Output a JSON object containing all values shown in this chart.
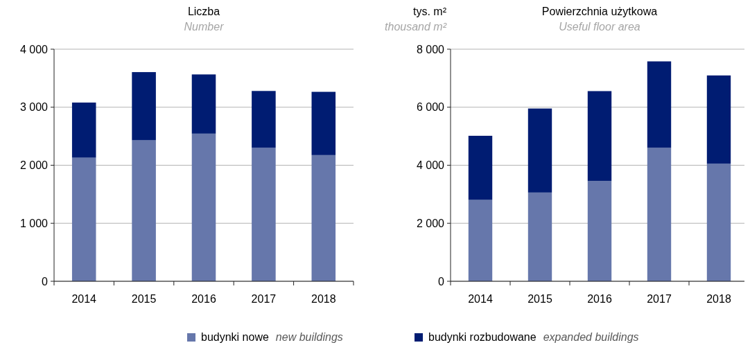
{
  "chart_data": [
    {
      "type": "bar",
      "title": "Liczba",
      "subtitle": "Number",
      "categories": [
        "2014",
        "2015",
        "2016",
        "2017",
        "2018"
      ],
      "stacked": true,
      "ylim": [
        0,
        4000
      ],
      "yticks": [
        {
          "value": 0,
          "label": "0"
        },
        {
          "value": 1000,
          "label": "1 000"
        },
        {
          "value": 2000,
          "label": "2 000"
        },
        {
          "value": 3000,
          "label": "3 000"
        },
        {
          "value": 4000,
          "label": "4 000"
        }
      ],
      "grid": "y",
      "legend": "bottom",
      "series": [
        {
          "name": "budynki nowe  new buildings",
          "color": "#6677ab",
          "values": [
            2130,
            2430,
            2545,
            2300,
            2175
          ]
        },
        {
          "name": "budynki rozbudowane  expanded buildings",
          "color": "#001c72",
          "values": [
            950,
            1175,
            1020,
            980,
            1090
          ]
        }
      ]
    },
    {
      "type": "bar",
      "title": "Powierzchnia użytkowa",
      "subtitle": "Useful floor area",
      "ylabel": "tys. m²",
      "annotations": [
        "thousand m²"
      ],
      "categories": [
        "2014",
        "2015",
        "2016",
        "2017",
        "2018"
      ],
      "stacked": true,
      "ylim": [
        0,
        8000
      ],
      "yticks": [
        {
          "value": 0,
          "label": "0"
        },
        {
          "value": 2000,
          "label": "2 000"
        },
        {
          "value": 4000,
          "label": "4 000"
        },
        {
          "value": 6000,
          "label": "6 000"
        },
        {
          "value": 8000,
          "label": "8 000"
        }
      ],
      "grid": "y",
      "series": [
        {
          "color": "#6677ab",
          "values": [
            2805,
            3060,
            3455,
            4600,
            4050
          ]
        },
        {
          "color": "#001c72",
          "values": [
            2210,
            2895,
            3100,
            2980,
            3045
          ]
        }
      ]
    }
  ]
}
